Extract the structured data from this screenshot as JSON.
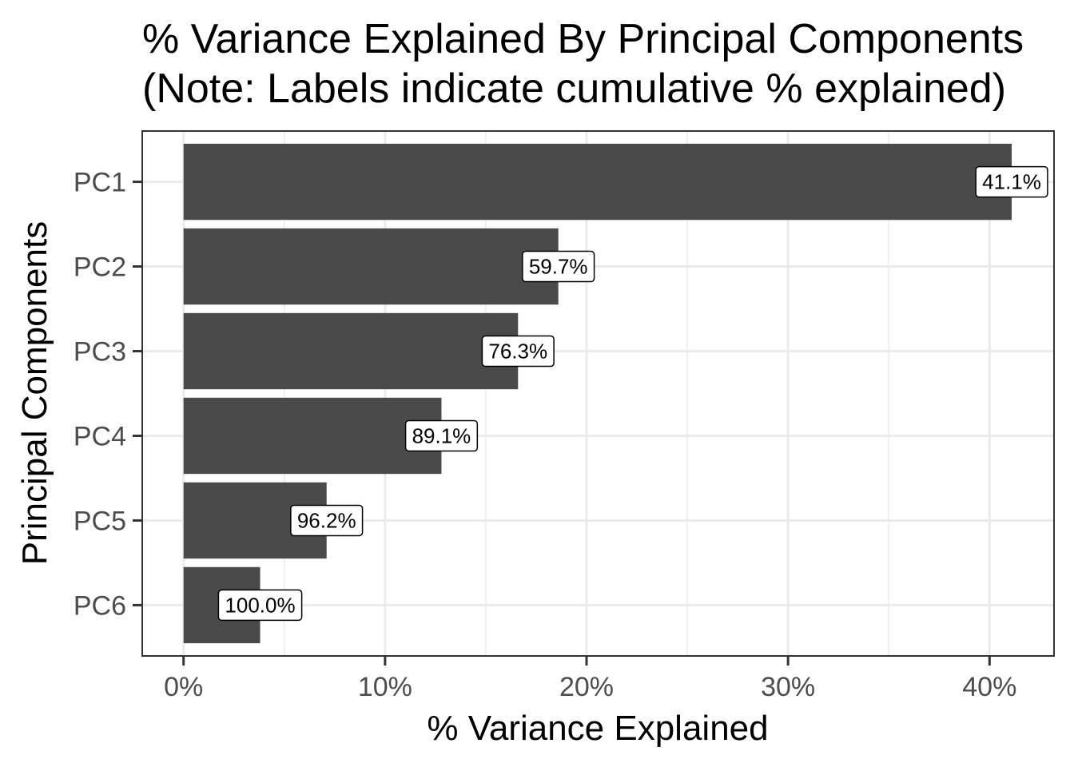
{
  "chart_data": {
    "type": "bar",
    "orientation": "horizontal",
    "title": "% Variance Explained By Principal Components",
    "subtitle": "(Note: Labels indicate cumulative % explained)",
    "xlabel": "% Variance Explained",
    "ylabel": "Principal Components",
    "categories": [
      "PC1",
      "PC2",
      "PC3",
      "PC4",
      "PC5",
      "PC6"
    ],
    "values": [
      41.1,
      18.6,
      16.6,
      12.8,
      7.1,
      3.8
    ],
    "labels": [
      "41.1%",
      "59.7%",
      "76.3%",
      "89.1%",
      "96.2%",
      "100.0%"
    ],
    "xlim": [
      -2.05,
      43.2
    ],
    "x_ticks": [
      0,
      10,
      20,
      30,
      40
    ],
    "x_tick_labels": [
      "0%",
      "10%",
      "20%",
      "30%",
      "40%"
    ],
    "grid": true,
    "legend": "none",
    "colors": {
      "bar": "#4a4a4a",
      "grid": "#ebebeb",
      "panel_border": "#333333",
      "tick_text": "#4d4d4d",
      "label_fill": "#ffffff",
      "label_border": "#000000"
    }
  }
}
